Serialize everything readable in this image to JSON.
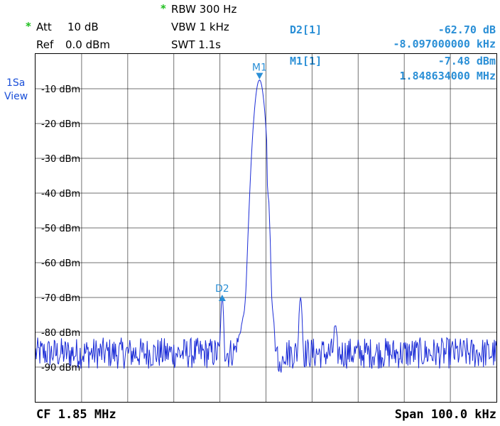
{
  "settings": {
    "rbw_star": "*",
    "rbw": "RBW 300 Hz",
    "att_star": "*",
    "att_label": "Att",
    "att_value": "10 dB",
    "vbw": "VBW 1 kHz",
    "ref_label": "Ref",
    "ref_value": "0.0 dBm",
    "swt": "SWT 1.1s"
  },
  "readouts": {
    "d2_label": "D2[1]",
    "d2_level": "-62.70 dB",
    "d2_freq": "-8.097000000 kHz",
    "m1_label": "M1[1]",
    "m1_level": "-7.48 dBm",
    "m1_freq": "1.848634000 MHz"
  },
  "side": {
    "line1": "1Sa",
    "line2": "View"
  },
  "footer": {
    "center": "CF 1.85 MHz",
    "span": "Span 100.0 kHz"
  },
  "colors": {
    "trace": "#1a2bd6",
    "marker": "#2a8fd6",
    "grid": "#000000",
    "star": "#1fbf1f"
  },
  "chart_data": {
    "type": "line",
    "y_ticks": [
      "-10 dBm",
      "-20 dBm",
      "-30 dBm",
      "-40 dBm",
      "-50 dBm",
      "-60 dBm",
      "-70 dBm",
      "-80 dBm",
      "-90 dBm"
    ],
    "ylim": [
      -100,
      0
    ],
    "xlim_khz": [
      -50,
      50
    ],
    "grid": true,
    "center_mhz": 1.85,
    "span_khz": 100,
    "noise_floor_dbm": -86,
    "peaks": [
      {
        "offset_khz": -1.4,
        "level_dbm": -7.48
      },
      {
        "offset_khz": -9.5,
        "level_dbm": -70.2
      },
      {
        "offset_khz": 7.5,
        "level_dbm": -70
      },
      {
        "offset_khz": 15,
        "level_dbm": -79
      }
    ],
    "markers": [
      {
        "name": "M1",
        "offset_khz": -1.4,
        "level_dbm": -7.48
      },
      {
        "name": "D2",
        "offset_khz": -9.5,
        "level_dbm": -70.2
      }
    ]
  }
}
